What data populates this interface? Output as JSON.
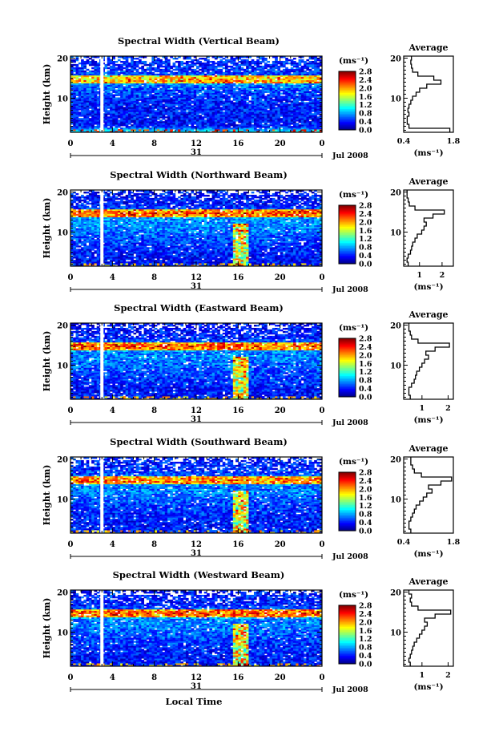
{
  "figure": {
    "xlabel_bottom": "Local Time",
    "date_label": "Jul 2008",
    "day_label": "31",
    "colorbar_unit": "(ms⁻¹)",
    "average_title": "Average",
    "average_unit": "(ms⁻¹)",
    "ylabel": "Height (km)"
  },
  "chart_data": [
    {
      "type": "heatmap",
      "title": "Spectral Width (Vertical Beam)",
      "xlabel": "",
      "ylabel": "Height (km)",
      "x_ticks": [
        "0",
        "4",
        "8",
        "12",
        "16",
        "20",
        "0"
      ],
      "y_ticks": [
        "10",
        "20"
      ],
      "xlim": [
        0,
        24
      ],
      "ylim": [
        1.5,
        20.5
      ],
      "colorbar": {
        "ticks": [
          "0.0",
          "0.4",
          "0.8",
          "1.2",
          "1.6",
          "2.0",
          "2.4",
          "2.8"
        ],
        "range": [
          0.0,
          2.8
        ]
      },
      "data_gap_hour": 3.0,
      "average_profile": {
        "xlim": [
          0.4,
          1.8
        ],
        "x_ticks": [
          "0.4",
          "1.8"
        ],
        "y_ticks": [
          "10",
          "20"
        ],
        "height_km": [
          2,
          3,
          4,
          5,
          6,
          7,
          8,
          9,
          10,
          11,
          12,
          13,
          14,
          15,
          16,
          17,
          18,
          19,
          20
        ],
        "value": [
          1.7,
          0.55,
          0.5,
          0.5,
          0.55,
          0.52,
          0.55,
          0.6,
          0.65,
          0.75,
          0.85,
          1.05,
          1.45,
          1.25,
          0.8,
          0.65,
          0.62,
          0.6,
          0.62
        ]
      }
    },
    {
      "type": "heatmap",
      "title": "Spectral Width (Northward Beam)",
      "xlabel": "",
      "ylabel": "Height (km)",
      "x_ticks": [
        "0",
        "4",
        "8",
        "12",
        "16",
        "20",
        "0"
      ],
      "y_ticks": [
        "10",
        "20"
      ],
      "xlim": [
        0,
        24
      ],
      "ylim": [
        1.5,
        20.5
      ],
      "colorbar": {
        "ticks": [
          "0.0",
          "0.4",
          "0.8",
          "1.2",
          "1.6",
          "2.0",
          "2.4",
          "2.8"
        ],
        "range": [
          0.0,
          2.8
        ]
      },
      "data_gap_hour": 3.0,
      "average_profile": {
        "xlim": [
          0.3,
          2.5
        ],
        "x_ticks": [
          "1",
          "2"
        ],
        "y_ticks": [
          "10",
          "20"
        ],
        "height_km": [
          2,
          3,
          4,
          5,
          6,
          7,
          8,
          9,
          10,
          11,
          12,
          13,
          14,
          15,
          16,
          17,
          18,
          19,
          20
        ],
        "value": [
          0.5,
          0.45,
          0.5,
          0.6,
          0.65,
          0.7,
          0.8,
          0.9,
          1.1,
          1.2,
          1.3,
          1.2,
          1.6,
          2.1,
          0.8,
          0.55,
          0.5,
          0.45,
          0.45
        ]
      }
    },
    {
      "type": "heatmap",
      "title": "Spectral Width (Eastward Beam)",
      "xlabel": "",
      "ylabel": "Height (km)",
      "x_ticks": [
        "0",
        "4",
        "8",
        "12",
        "16",
        "20",
        "0"
      ],
      "y_ticks": [
        "10",
        "20"
      ],
      "xlim": [
        0,
        24
      ],
      "ylim": [
        1.5,
        20.5
      ],
      "colorbar": {
        "ticks": [
          "0.0",
          "0.4",
          "0.8",
          "1.2",
          "1.6",
          "2.0",
          "2.4",
          "2.8"
        ],
        "range": [
          0.0,
          2.8
        ]
      },
      "data_gap_hour": 3.0,
      "average_profile": {
        "xlim": [
          0.3,
          2.2
        ],
        "x_ticks": [
          "1",
          "2"
        ],
        "y_ticks": [
          "10",
          "20"
        ],
        "height_km": [
          2,
          3,
          4,
          5,
          6,
          7,
          8,
          9,
          10,
          11,
          12,
          13,
          14,
          15,
          16,
          17,
          18,
          19,
          20
        ],
        "value": [
          0.55,
          0.5,
          0.5,
          0.6,
          0.7,
          0.75,
          0.8,
          0.9,
          1.0,
          1.1,
          1.25,
          1.15,
          1.5,
          2.05,
          0.85,
          0.6,
          0.55,
          0.5,
          0.5
        ]
      }
    },
    {
      "type": "heatmap",
      "title": "Spectral Width (Southward Beam)",
      "xlabel": "",
      "ylabel": "Height (km)",
      "x_ticks": [
        "0",
        "4",
        "8",
        "12",
        "16",
        "20",
        "0"
      ],
      "y_ticks": [
        "10",
        "20"
      ],
      "xlim": [
        0,
        24
      ],
      "ylim": [
        1.5,
        20.5
      ],
      "colorbar": {
        "ticks": [
          "0.0",
          "0.4",
          "0.8",
          "1.2",
          "1.6",
          "2.0",
          "2.4",
          "2.8"
        ],
        "range": [
          0.0,
          2.8
        ]
      },
      "data_gap_hour": 3.0,
      "average_profile": {
        "xlim": [
          0.4,
          1.8
        ],
        "x_ticks": [
          "0.4",
          "1.8"
        ],
        "y_ticks": [
          "10",
          "20"
        ],
        "height_km": [
          2,
          3,
          4,
          5,
          6,
          7,
          8,
          9,
          10,
          11,
          12,
          13,
          14,
          15,
          16,
          17,
          18,
          19,
          20
        ],
        "value": [
          0.6,
          0.55,
          0.55,
          0.6,
          0.65,
          0.7,
          0.75,
          0.85,
          0.95,
          1.05,
          1.2,
          1.1,
          1.45,
          1.75,
          0.9,
          0.7,
          0.65,
          0.6,
          0.6
        ]
      }
    },
    {
      "type": "heatmap",
      "title": "Spectral Width (Westward Beam)",
      "xlabel": "Local Time",
      "ylabel": "Height (km)",
      "x_ticks": [
        "0",
        "4",
        "8",
        "12",
        "16",
        "20",
        "0"
      ],
      "y_ticks": [
        "10",
        "20"
      ],
      "xlim": [
        0,
        24
      ],
      "ylim": [
        1.5,
        20.5
      ],
      "colorbar": {
        "ticks": [
          "0.0",
          "0.4",
          "0.8",
          "1.2",
          "1.6",
          "2.0",
          "2.4",
          "2.8"
        ],
        "range": [
          0.0,
          2.8
        ]
      },
      "data_gap_hour": 3.0,
      "average_profile": {
        "xlim": [
          0.3,
          2.2
        ],
        "x_ticks": [
          "1",
          "2"
        ],
        "y_ticks": [
          "10",
          "20"
        ],
        "height_km": [
          2,
          3,
          4,
          5,
          6,
          7,
          8,
          9,
          10,
          11,
          12,
          13,
          14,
          15,
          16,
          17,
          18,
          19,
          20
        ],
        "value": [
          0.55,
          0.5,
          0.55,
          0.6,
          0.65,
          0.7,
          0.8,
          0.9,
          1.0,
          1.1,
          1.2,
          1.1,
          1.5,
          2.1,
          0.85,
          0.6,
          0.55,
          0.6,
          0.5
        ]
      }
    }
  ]
}
